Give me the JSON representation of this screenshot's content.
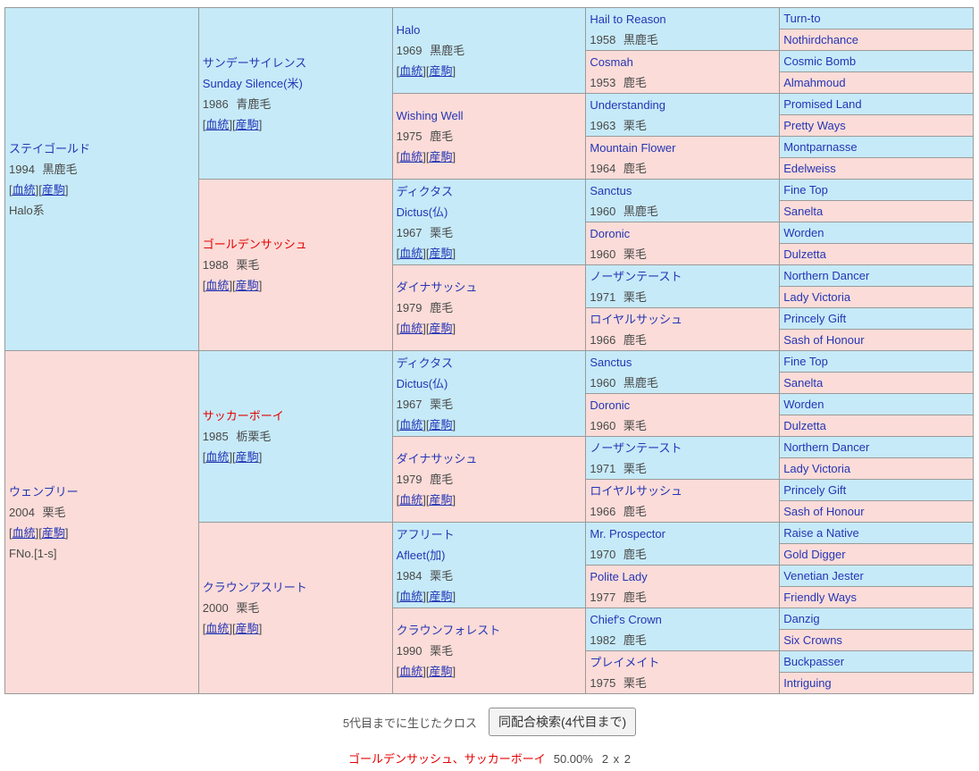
{
  "labels": {
    "blood": "血統",
    "offspring": "産駒",
    "cross_caption": "5代目までに生じたクロス",
    "cross_button": "同配合検索(4代目まで)",
    "cross_names": "ゴールデンサッシュ、サッカーボーイ",
    "cross_percent": "50.00%",
    "cross_count": "2 x 2"
  },
  "colors": {
    "sire_cell_bg": "#c6eaf8",
    "dam_cell_bg": "#fbdcd8",
    "cell_border": "#9a9a9a",
    "link_blue": "#2535b5",
    "highlight_red": "#e60000",
    "plain_text": "#4a4a4a"
  },
  "pedigree": {
    "gen1": [
      {
        "name": "ステイゴールド",
        "year_coat": "1994 黒鹿毛",
        "extra": "Halo系"
      },
      {
        "name": "ウェンブリー",
        "year_coat": "2004 栗毛",
        "extra": "FNo.[1-s]"
      }
    ],
    "gen2": [
      {
        "name": "サンデーサイレンス",
        "latin": "Sunday Silence(米)",
        "year_coat": "1986 青鹿毛"
      },
      {
        "name": "ゴールデンサッシュ",
        "year_coat": "1988 栗毛",
        "highlight": true
      },
      {
        "name": "サッカーボーイ",
        "year_coat": "1985 栃栗毛",
        "highlight": true
      },
      {
        "name": "クラウンアスリート",
        "year_coat": "2000 栗毛"
      }
    ],
    "gen3": [
      {
        "name": "Halo",
        "year_coat": "1969 黒鹿毛"
      },
      {
        "name": "Wishing Well",
        "year_coat": "1975 鹿毛"
      },
      {
        "name": "ディクタス",
        "latin": "Dictus(仏)",
        "year_coat": "1967 栗毛"
      },
      {
        "name": "ダイナサッシュ",
        "year_coat": "1979 鹿毛"
      },
      {
        "name": "ディクタス",
        "latin": "Dictus(仏)",
        "year_coat": "1967 栗毛"
      },
      {
        "name": "ダイナサッシュ",
        "year_coat": "1979 鹿毛"
      },
      {
        "name": "アフリート",
        "latin": "Afleet(加)",
        "year_coat": "1984 栗毛"
      },
      {
        "name": "クラウンフォレスト",
        "year_coat": "1990 栗毛"
      }
    ],
    "gen4": [
      {
        "name": "Hail to Reason",
        "year_coat": "1958 黒鹿毛"
      },
      {
        "name": "Cosmah",
        "year_coat": "1953 鹿毛"
      },
      {
        "name": "Understanding",
        "year_coat": "1963 栗毛"
      },
      {
        "name": "Mountain Flower",
        "year_coat": "1964 鹿毛"
      },
      {
        "name": "Sanctus",
        "year_coat": "1960 黒鹿毛"
      },
      {
        "name": "Doronic",
        "year_coat": "1960 栗毛"
      },
      {
        "name": "ノーザンテースト",
        "year_coat": "1971 栗毛"
      },
      {
        "name": "ロイヤルサッシュ",
        "year_coat": "1966 鹿毛"
      },
      {
        "name": "Sanctus",
        "year_coat": "1960 黒鹿毛"
      },
      {
        "name": "Doronic",
        "year_coat": "1960 栗毛"
      },
      {
        "name": "ノーザンテースト",
        "year_coat": "1971 栗毛"
      },
      {
        "name": "ロイヤルサッシュ",
        "year_coat": "1966 鹿毛"
      },
      {
        "name": "Mr. Prospector",
        "year_coat": "1970 鹿毛"
      },
      {
        "name": "Polite Lady",
        "year_coat": "1977 鹿毛"
      },
      {
        "name": "Chief's Crown",
        "year_coat": "1982 鹿毛"
      },
      {
        "name": "プレイメイト",
        "year_coat": "1975 栗毛"
      }
    ],
    "gen5": [
      {
        "name": "Turn-to"
      },
      {
        "name": "Nothirdchance"
      },
      {
        "name": "Cosmic Bomb"
      },
      {
        "name": "Almahmoud"
      },
      {
        "name": "Promised Land"
      },
      {
        "name": "Pretty Ways"
      },
      {
        "name": "Montparnasse"
      },
      {
        "name": "Edelweiss"
      },
      {
        "name": "Fine Top"
      },
      {
        "name": "Sanelta"
      },
      {
        "name": "Worden"
      },
      {
        "name": "Dulzetta"
      },
      {
        "name": "Northern Dancer"
      },
      {
        "name": "Lady Victoria"
      },
      {
        "name": "Princely Gift"
      },
      {
        "name": "Sash of Honour"
      },
      {
        "name": "Fine Top"
      },
      {
        "name": "Sanelta"
      },
      {
        "name": "Worden"
      },
      {
        "name": "Dulzetta"
      },
      {
        "name": "Northern Dancer"
      },
      {
        "name": "Lady Victoria"
      },
      {
        "name": "Princely Gift"
      },
      {
        "name": "Sash of Honour"
      },
      {
        "name": "Raise a Native"
      },
      {
        "name": "Gold Digger"
      },
      {
        "name": "Venetian Jester"
      },
      {
        "name": "Friendly Ways"
      },
      {
        "name": "Danzig"
      },
      {
        "name": "Six Crowns"
      },
      {
        "name": "Buckpasser"
      },
      {
        "name": "Intriguing"
      }
    ]
  }
}
